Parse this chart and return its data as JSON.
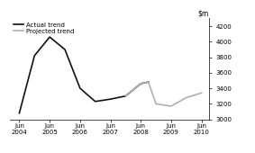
{
  "actual_x": [
    2004.5,
    2005.0,
    2005.5,
    2006.0,
    2006.5,
    2007.0,
    2007.5,
    2008.0,
    2008.5,
    2008.75
  ],
  "actual_y": [
    3080,
    3820,
    4060,
    3900,
    3400,
    3230,
    3260,
    3300,
    3460,
    3480
  ],
  "projected_x": [
    2008.0,
    2008.5,
    2008.75,
    2009.0,
    2009.5,
    2010.0,
    2010.5
  ],
  "projected_y": [
    3300,
    3460,
    3480,
    3200,
    3170,
    3280,
    3340
  ],
  "actual_color": "#111111",
  "projected_color": "#b0b0b0",
  "ylim": [
    3000,
    4300
  ],
  "yticks": [
    3000,
    3200,
    3400,
    3600,
    3800,
    4000,
    4200
  ],
  "xlim": [
    2004.2,
    2010.75
  ],
  "xtick_positions": [
    2004.5,
    2005.5,
    2006.5,
    2007.5,
    2008.5,
    2009.5,
    2010.5
  ],
  "xtick_labels_line1": [
    "Jun",
    "Jun",
    "Jun",
    "Jun",
    "Jun",
    "Jun",
    "Jun"
  ],
  "xtick_labels_line2": [
    "2004",
    "2005",
    "2006",
    "2007",
    "2008",
    "2009",
    "2010"
  ],
  "legend_actual": "Actual trend",
  "legend_projected": "Projected trend",
  "bg_color": "#ffffff",
  "linewidth": 1.2
}
